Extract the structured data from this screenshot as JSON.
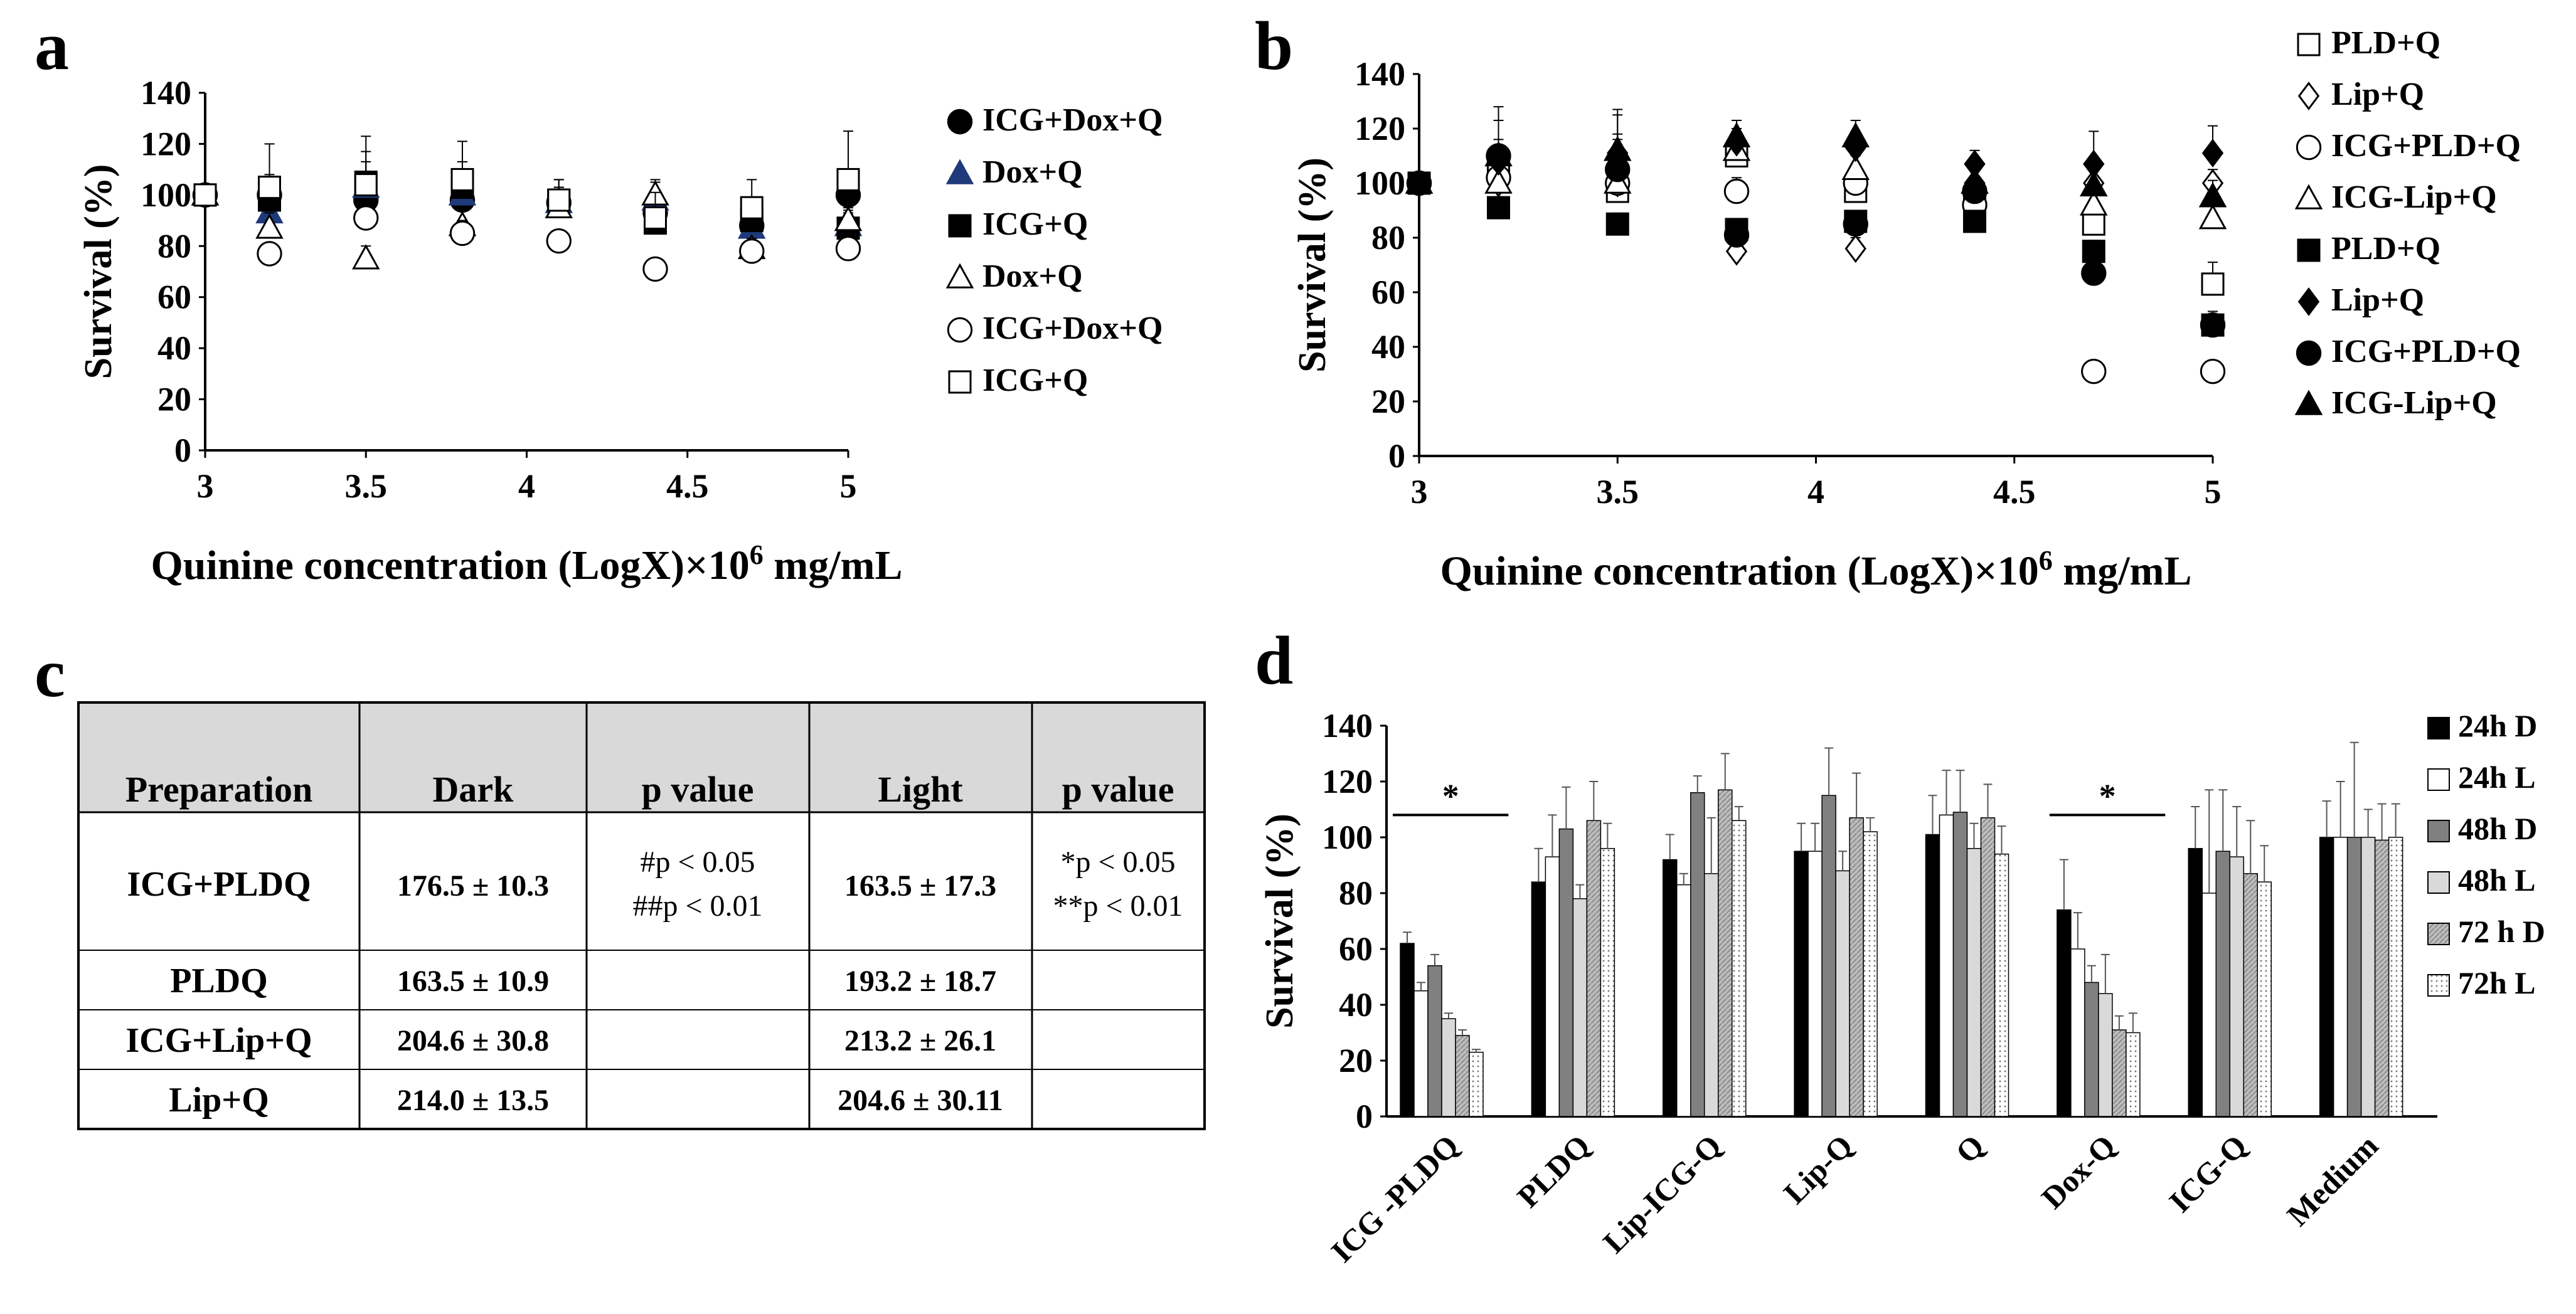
{
  "colors": {
    "black": "#000000",
    "navy": "#1f3a7a",
    "grey_dark": "#808080",
    "grey_light": "#bfbfbf",
    "grey_mid": "#a6a6a6",
    "table_header": "#d9d9d9"
  },
  "panel_labels": [
    "a",
    "b",
    "c",
    "d"
  ],
  "table": {
    "headers": [
      "Preparation",
      "Dark",
      "p value",
      "Light",
      "p value"
    ],
    "rows": [
      {
        "prep": "ICG+PLDQ",
        "dark": "176.5 ± 10.3",
        "p_dark": [
          "#p < 0.05",
          "##p < 0.01"
        ],
        "light": "163.5 ± 17.3",
        "p_light": [
          "*p < 0.05",
          "**p < 0.01"
        ]
      },
      {
        "prep": "PLDQ",
        "dark": "163.5 ± 10.9",
        "p_dark": [],
        "light": "193.2 ± 18.7",
        "p_light": []
      },
      {
        "prep": "ICG+Lip+Q",
        "dark": "204.6 ± 30.8",
        "p_dark": [],
        "light": "213.2 ± 26.1",
        "p_light": []
      },
      {
        "prep": "Lip+Q",
        "dark": "214.0 ± 13.5",
        "p_dark": [],
        "light": "204.6 ± 30.11",
        "p_light": []
      }
    ]
  },
  "chart_data": [
    {
      "panel": "a",
      "type": "scatter",
      "xlabel": "Quinine concentration (LogX)×10",
      "xlabel_sup": "6",
      "xlabel_tail": " mg/mL",
      "ylabel": "Survival (%)",
      "xlim": [
        3,
        5
      ],
      "ylim": [
        0,
        140
      ],
      "xticks": [
        3,
        3.5,
        4,
        4.5,
        5
      ],
      "xtick_labels": [
        "3",
        "3.5",
        "4",
        "4.5",
        "5"
      ],
      "yticks": [
        0,
        20,
        40,
        60,
        80,
        100,
        120,
        140
      ],
      "ytick_labels": [
        "0",
        "20",
        "40",
        "60",
        "80",
        "100",
        "120",
        "140"
      ],
      "x": [
        3,
        3.2,
        3.5,
        3.8,
        4.1,
        4.4,
        4.7,
        5
      ],
      "series": [
        {
          "name": "ICG+Dox+Q",
          "marker": "circle",
          "filled": true,
          "color": "#000000",
          "values": [
            100,
            100,
            98,
            98,
            97,
            93,
            88,
            100
          ],
          "errors": [
            0,
            5,
            8,
            6,
            6,
            8,
            6,
            8
          ]
        },
        {
          "name": "Dox+Q",
          "marker": "triangle",
          "filled": true,
          "color": "#1f3a7a",
          "values": [
            100,
            93,
            103,
            100,
            97,
            98,
            87,
            88
          ],
          "errors": [
            0,
            6,
            10,
            8,
            6,
            8,
            5,
            6
          ]
        },
        {
          "name": "ICG+Q",
          "marker": "square",
          "filled": true,
          "color": "#000000",
          "values": [
            100,
            98,
            105,
            103,
            98,
            89,
            90,
            87
          ],
          "errors": [
            0,
            10,
            12,
            10,
            8,
            6,
            5,
            6
          ]
        },
        {
          "name": "Dox+Q",
          "marker": "triangle",
          "filled": false,
          "color": "#000000",
          "values": [
            100,
            87,
            75,
            88,
            95,
            100,
            79,
            90
          ],
          "errors": [
            0,
            6,
            5,
            6,
            6,
            5,
            4,
            5
          ]
        },
        {
          "name": "ICG+Dox+Q",
          "marker": "circle",
          "filled": false,
          "color": "#000000",
          "values": [
            100,
            77,
            91,
            85,
            82,
            71,
            78,
            79
          ],
          "errors": [
            0,
            4,
            5,
            5,
            4,
            4,
            4,
            4
          ]
        },
        {
          "name": "ICG+Q",
          "marker": "square",
          "filled": false,
          "color": "#000000",
          "values": [
            100,
            103,
            104,
            106,
            98,
            91,
            95,
            106
          ],
          "errors": [
            0,
            17,
            19,
            15,
            8,
            10,
            11,
            19
          ]
        }
      ]
    },
    {
      "panel": "b",
      "type": "scatter",
      "xlabel": "Quinine concentration (LogX)×10",
      "xlabel_sup": "6",
      "xlabel_tail": " mg/mL",
      "ylabel": "Survival (%)",
      "xlim": [
        3,
        5
      ],
      "ylim": [
        0,
        140
      ],
      "xticks": [
        3,
        3.5,
        4,
        4.5,
        5
      ],
      "xtick_labels": [
        "3",
        "3.5",
        "4",
        "4.5",
        "5"
      ],
      "yticks": [
        0,
        20,
        40,
        60,
        80,
        100,
        120,
        140
      ],
      "ytick_labels": [
        "0",
        "20",
        "40",
        "60",
        "80",
        "100",
        "120",
        "140"
      ],
      "x": [
        3,
        3.2,
        3.5,
        3.8,
        4.1,
        4.4,
        4.7,
        5
      ],
      "series": [
        {
          "name": "PLD+Q",
          "marker": "square",
          "filled": false,
          "color": "#000000",
          "values": [
            100,
            105,
            97,
            110,
            97,
            93,
            85,
            63
          ],
          "errors": [
            0,
            18,
            30,
            8,
            10,
            5,
            6,
            8
          ]
        },
        {
          "name": "Lip+Q",
          "marker": "diamond",
          "filled": false,
          "color": "#000000",
          "values": [
            100,
            100,
            100,
            75,
            76,
            100,
            100,
            100
          ],
          "errors": [
            0,
            5,
            5,
            4,
            4,
            5,
            5,
            5
          ]
        },
        {
          "name": "ICG+PLD+Q",
          "marker": "circle",
          "filled": false,
          "color": "#000000",
          "values": [
            100,
            102,
            100,
            97,
            100,
            92,
            31,
            31
          ],
          "errors": [
            0,
            8,
            5,
            5,
            5,
            5,
            3,
            3
          ]
        },
        {
          "name": "ICG-Lip+Q",
          "marker": "triangle",
          "filled": false,
          "color": "#000000",
          "values": [
            100,
            100,
            100,
            112,
            105,
            100,
            92,
            87
          ],
          "errors": [
            0,
            5,
            5,
            6,
            5,
            5,
            5,
            5
          ]
        },
        {
          "name": "PLD+Q",
          "marker": "square",
          "filled": true,
          "color": "#000000",
          "values": [
            100,
            91,
            85,
            83,
            86,
            86,
            75,
            48
          ],
          "errors": [
            0,
            4,
            4,
            4,
            4,
            4,
            4,
            4
          ]
        },
        {
          "name": "Lip+Q",
          "marker": "diamond",
          "filled": true,
          "color": "#000000",
          "values": [
            100,
            108,
            111,
            115,
            113,
            107,
            107,
            111
          ],
          "errors": [
            0,
            5,
            5,
            5,
            5,
            5,
            12,
            10
          ]
        },
        {
          "name": "ICG+PLD+Q",
          "marker": "circle",
          "filled": true,
          "color": "#000000",
          "values": [
            100,
            110,
            105,
            81,
            85,
            97,
            67,
            48
          ],
          "errors": [
            0,
            18,
            20,
            5,
            5,
            5,
            5,
            5
          ]
        },
        {
          "name": "ICG-Lip+Q",
          "marker": "triangle",
          "filled": true,
          "color": "#000000",
          "values": [
            100,
            110,
            112,
            117,
            117,
            100,
            99,
            95
          ],
          "errors": [
            0,
            6,
            6,
            6,
            6,
            6,
            6,
            6
          ]
        }
      ]
    },
    {
      "panel": "d",
      "type": "bar",
      "ylabel": "Survival (%)",
      "ylim": [
        0,
        140
      ],
      "yticks": [
        0,
        20,
        40,
        60,
        80,
        100,
        120,
        140
      ],
      "ytick_labels": [
        "0",
        "20",
        "40",
        "60",
        "80",
        "100",
        "120",
        "140"
      ],
      "categories": [
        "ICG -PLDQ",
        "PLDQ",
        "Lip-ICG-Q",
        "Lip-Q",
        "Q",
        "Dox-Q",
        "ICG-Q",
        "Medium"
      ],
      "annotation": "*",
      "series": [
        {
          "name": "24h D",
          "fill": "#000000",
          "pattern": "solid",
          "values": [
            62,
            84,
            92,
            95,
            101,
            74,
            96,
            100
          ],
          "errors": [
            4,
            12,
            9,
            10,
            14,
            18,
            15,
            13
          ]
        },
        {
          "name": "24h L",
          "fill": "#ffffff",
          "pattern": "solid",
          "values": [
            45,
            93,
            83,
            95,
            108,
            60,
            80,
            100
          ],
          "errors": [
            3,
            15,
            4,
            10,
            16,
            13,
            37,
            20
          ]
        },
        {
          "name": "48h D",
          "fill": "#808080",
          "pattern": "solid",
          "values": [
            54,
            103,
            116,
            115,
            109,
            48,
            95,
            100
          ],
          "errors": [
            4,
            15,
            6,
            17,
            15,
            6,
            22,
            34
          ]
        },
        {
          "name": "48h L",
          "fill": "#d9d9d9",
          "pattern": "solid",
          "values": [
            35,
            78,
            87,
            88,
            96,
            44,
            93,
            100
          ],
          "errors": [
            2,
            5,
            20,
            7,
            9,
            14,
            18,
            10
          ]
        },
        {
          "name": "72 h D",
          "fill": "#a6a6a6",
          "pattern": "stripe",
          "values": [
            29,
            106,
            117,
            107,
            107,
            31,
            87,
            99
          ],
          "errors": [
            2,
            14,
            13,
            16,
            12,
            5,
            19,
            13
          ]
        },
        {
          "name": "72h L",
          "fill": "#ffffff",
          "pattern": "dots",
          "values": [
            23,
            96,
            106,
            102,
            94,
            30,
            84,
            100
          ],
          "errors": [
            1,
            9,
            5,
            5,
            10,
            7,
            13,
            12
          ]
        }
      ]
    }
  ]
}
